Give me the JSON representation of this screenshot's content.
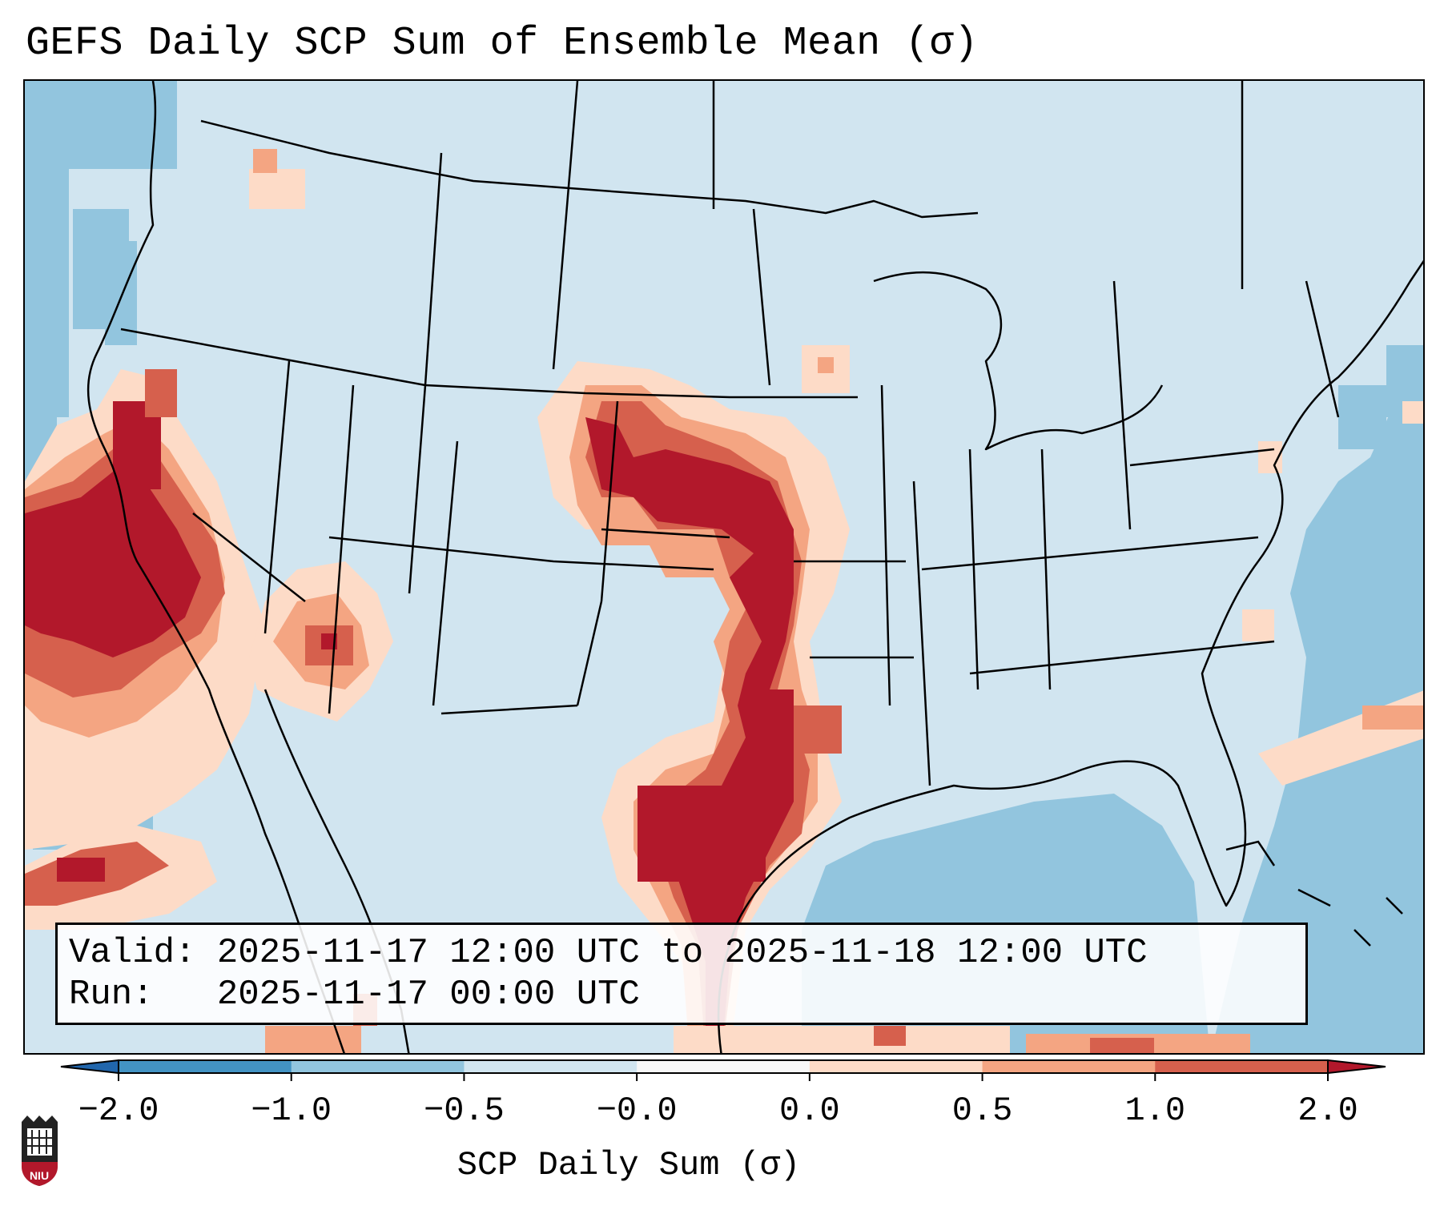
{
  "title": "GEFS Daily SCP Sum of Ensemble Mean (σ)",
  "info": {
    "valid": "Valid: 2025-11-17 12:00 UTC to 2025-11-18 12:00 UTC",
    "run": "Run:   2025-11-17 00:00 UTC"
  },
  "colorbar": {
    "label": "SCP Daily Sum (σ)",
    "ticks": [
      "−2.0",
      "−1.0",
      "−0.5",
      "−0.0",
      "0.0",
      "0.5",
      "1.0",
      "2.0"
    ],
    "bins": [
      {
        "range": "< -2.0",
        "color": "#2166ac"
      },
      {
        "range": "-2.0 to -1.0",
        "color": "#4393c3"
      },
      {
        "range": "-1.0 to -0.5",
        "color": "#92c5de"
      },
      {
        "range": "-0.5 to -0.0",
        "color": "#d1e5f0"
      },
      {
        "range": "-0.0 to 0.0",
        "color": "#f7f7f7"
      },
      {
        "range": "0.0 to 0.5",
        "color": "#fddbc7"
      },
      {
        "range": "0.5 to 1.0",
        "color": "#f4a582"
      },
      {
        "range": "1.0 to 2.0",
        "color": "#d6604d"
      },
      {
        "range": "> 2.0",
        "color": "#b2182b"
      }
    ]
  },
  "logo": {
    "text": "NIU",
    "colors": {
      "shield": "#b2182b",
      "tower": "#222222"
    }
  },
  "colors": {
    "map_background": "#d1e5f0",
    "ocean_anomaly": "#92c5de",
    "high_1": "#fddbc7",
    "high_2": "#f4a582",
    "high_3": "#d6604d",
    "high_4": "#b2182b"
  }
}
